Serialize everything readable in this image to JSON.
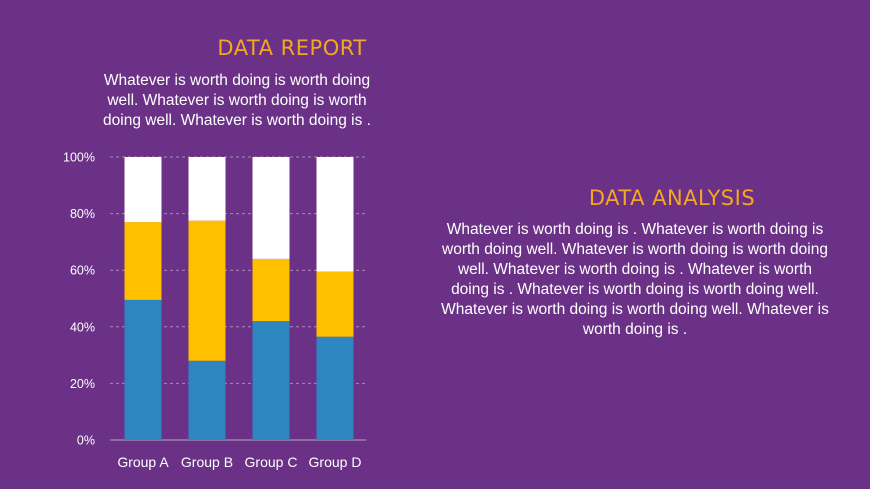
{
  "report": {
    "title": "DATA REPORT",
    "text": "Whatever is worth doing is worth doing well. Whatever is worth doing is worth doing well. Whatever is worth doing is ."
  },
  "analysis": {
    "title": "DATA ANALYSIS",
    "text": "Whatever is worth doing is . Whatever is worth doing is worth doing well. Whatever is worth doing is worth doing well. Whatever is worth doing is . Whatever is worth doing is . Whatever is worth doing is worth doing well. Whatever is worth doing is worth doing well. Whatever is worth doing is ."
  },
  "chart_data": {
    "type": "bar",
    "stacked": true,
    "percent": true,
    "categories": [
      "Group A",
      "Group B",
      "Group C",
      "Group D"
    ],
    "series": [
      {
        "color": "#2e86c1",
        "values": [
          49.5,
          28,
          42,
          36.5
        ]
      },
      {
        "color": "#ffc000",
        "values": [
          27.5,
          49.5,
          22,
          23
        ]
      },
      {
        "color": "#ffffff",
        "values": [
          23,
          22.5,
          36,
          40.5
        ]
      }
    ],
    "yticks": [
      "0%",
      "20%",
      "40%",
      "60%",
      "80%",
      "100%"
    ],
    "ylim": [
      0,
      100
    ],
    "grid": true,
    "grid_style": "dashed"
  }
}
